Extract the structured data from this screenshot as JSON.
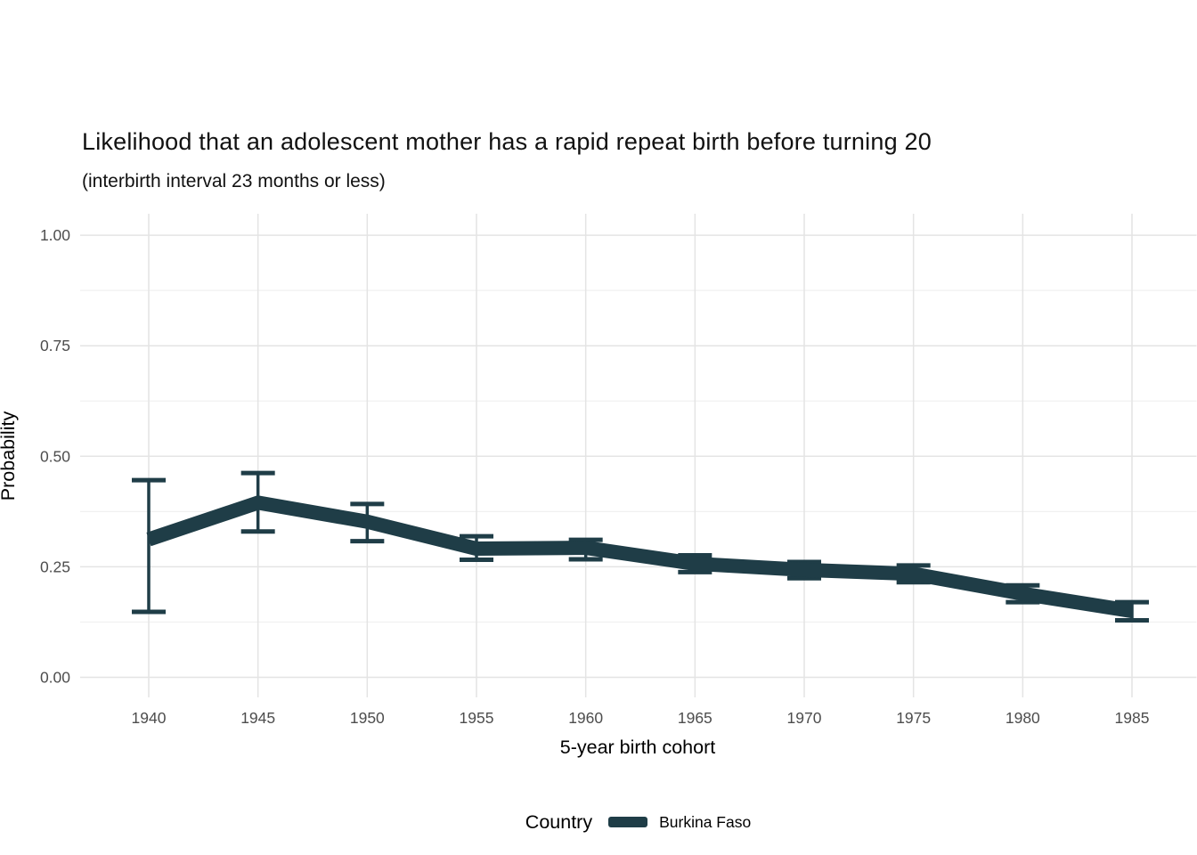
{
  "page": {
    "background": "#ffffff"
  },
  "colors": {
    "grid_major": "#e4e4e4",
    "grid_minor": "#f0f0f0",
    "tick_label": "#4d4d4d",
    "text": "#000000"
  },
  "chart_data": {
    "type": "line",
    "title": "Likelihood that an adolescent mother has a rapid repeat birth before turning 20",
    "subtitle": "(interbirth interval 23 months or less)",
    "xlabel": "5-year birth cohort",
    "ylabel": "Probability",
    "grid": true,
    "error_bars": true,
    "legend": {
      "title": "Country",
      "position": "bottom",
      "entries": [
        "Burkina Faso"
      ]
    },
    "x": [
      1940,
      1945,
      1950,
      1955,
      1960,
      1965,
      1970,
      1975,
      1980,
      1985
    ],
    "x_tick_labels": [
      "1940",
      "1945",
      "1950",
      "1955",
      "1960",
      "1965",
      "1970",
      "1975",
      "1980",
      "1985"
    ],
    "y_ticks": [
      0.0,
      0.25,
      0.5,
      0.75,
      1.0
    ],
    "y_tick_labels": [
      "0.00",
      "0.25",
      "0.50",
      "0.75",
      "1.00"
    ],
    "y_minor_gridlines": [
      0.125,
      0.375,
      0.625,
      0.875
    ],
    "ylim": [
      0,
      1
    ],
    "series": [
      {
        "name": "Burkina Faso",
        "color": "#1f3d47",
        "values": [
          0.312,
          0.395,
          0.352,
          0.291,
          0.293,
          0.257,
          0.243,
          0.234,
          0.189,
          0.15
        ],
        "ci_lower": [
          0.148,
          0.33,
          0.308,
          0.266,
          0.267,
          0.238,
          0.224,
          0.215,
          0.17,
          0.129
        ],
        "ci_upper": [
          0.446,
          0.462,
          0.392,
          0.319,
          0.311,
          0.276,
          0.261,
          0.253,
          0.208,
          0.17
        ]
      }
    ]
  }
}
